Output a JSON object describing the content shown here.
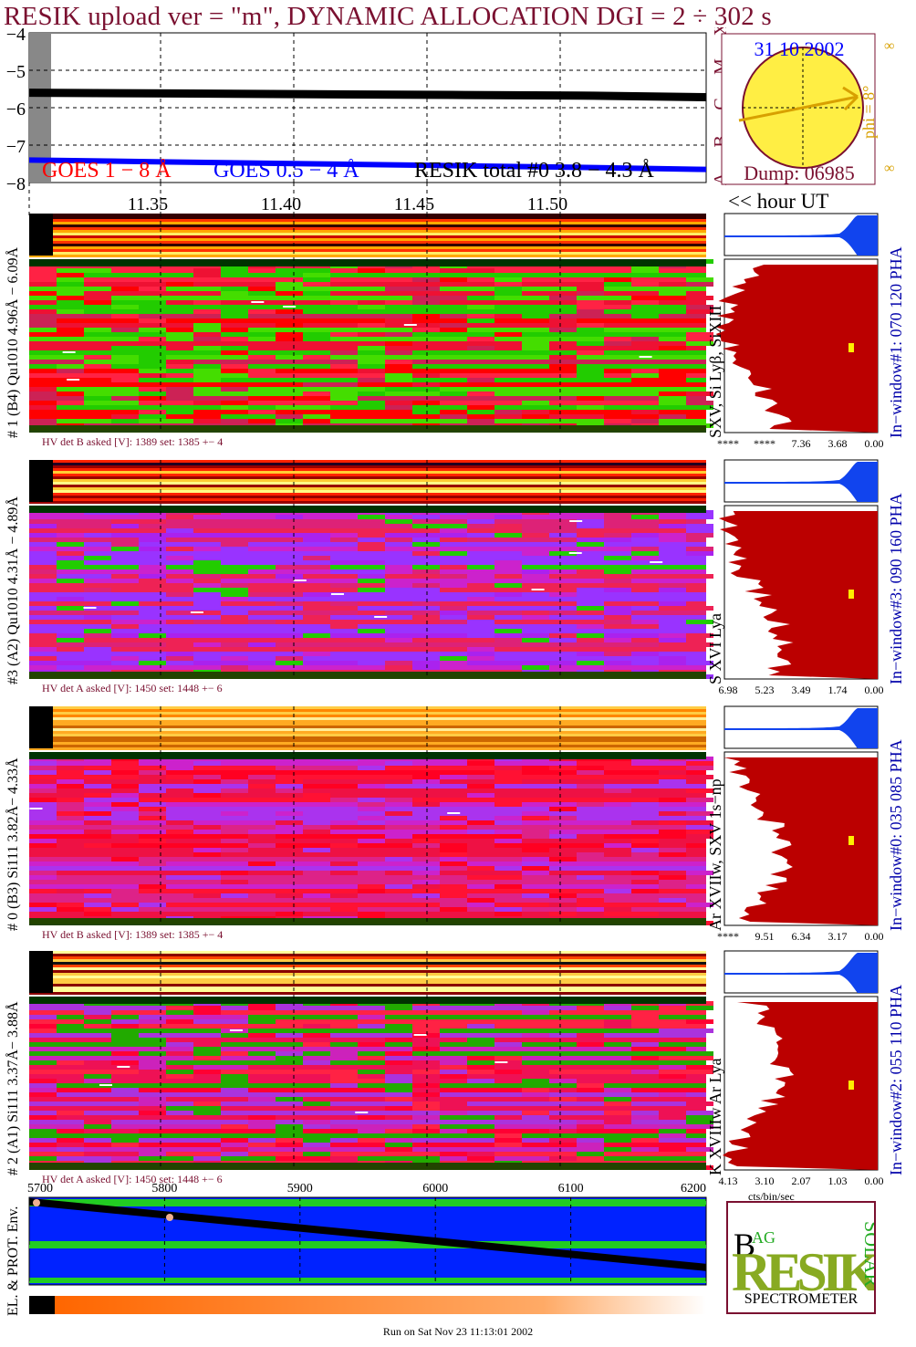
{
  "title": "RESIK upload ver = \"m\", DYNAMIC ALLOCATION  DGI =   2 ÷ 302 s",
  "goes": {
    "y_ticks": [
      "−4",
      "−5",
      "−6",
      "−7",
      "−8"
    ],
    "goes_low_label": "GOES 1 − 8 Å",
    "goes_high_label": "GOES 0.5 − 4 Å",
    "resik_label": "RESIK total #0  3.8 − 4.3 Å",
    "class_letters": [
      "A",
      "B",
      "C",
      "M",
      "X"
    ],
    "colors": {
      "goes_low": "#ff0000",
      "goes_high": "#0000ff",
      "resik": "#000000"
    }
  },
  "time_axis": {
    "ticks": [
      "11.35",
      "11.40",
      "11.45",
      "11.50"
    ],
    "unit_label": "<< hour UT"
  },
  "sun": {
    "date": "31 10 2002",
    "dump": "Dump: 06985",
    "phi": "phi =  8°",
    "infinity_top": "∞",
    "infinity_bottom": "∞"
  },
  "panels": [
    {
      "detector_label": "# 1 (B4) Qu1010 4.96Å − 6.09Å",
      "lines_label": "SXV, Si Lyβ, SiXIII",
      "hv_label": "HV det B asked [V]:  1389 set:  1385 +−   4",
      "window_label": "In−window#1:  070 120 PHA",
      "hist_ticks": [
        "****",
        "****",
        "7.36",
        "3.68",
        "0.00"
      ]
    },
    {
      "detector_label": "#3 (A2) Qu1010  4.31Å − 4.89Å",
      "lines_label": "S XVI Lya",
      "hv_label": "HV det A asked [V]:  1450 set:  1448 +−   6",
      "window_label": "In−window#3:  090 160 PHA",
      "hist_ticks": [
        "6.98",
        "5.23",
        "3.49",
        "1.74",
        "0.00"
      ]
    },
    {
      "detector_label": "# 0 (B3) Si111  3.82Å− 4.33Å",
      "lines_label": "Ar XVIIw,  SXV 1s−np",
      "hv_label": "HV det B asked [V]:  1389 set:  1385 +−   4",
      "window_label": "In−window#0:  035 085 PHA",
      "hist_ticks": [
        "****",
        "9.51",
        "6.34",
        "3.17",
        "0.00"
      ]
    },
    {
      "detector_label": "# 2 (A1) Si111  3.37Å− 3.88Å",
      "lines_label": "K XVIIIw  Ar Lya",
      "hv_label": "HV det A asked [V]:  1450 set:  1448 +−   6",
      "window_label": "In−window#2:  055 110 PHA",
      "hist_ticks": [
        "4.13",
        "3.10",
        "2.07",
        "1.03",
        "0.00"
      ]
    }
  ],
  "hist_unit": "cts/bin/sec",
  "env": {
    "label": "EL. & PROT. Env.",
    "x_ticks": [
      "5700",
      "5800",
      "5900",
      "6000",
      "6100",
      "6200"
    ]
  },
  "logo": {
    "big": "RESIK",
    "letters_b": "B",
    "letters_ag": "AG",
    "letters_solar": "SOLAR",
    "caption": "SPECTROMETER"
  },
  "run_on": "Run on Sat Nov 23 11:13:01 2002",
  "chart_data": [
    {
      "type": "line",
      "title": "",
      "ylabel": "",
      "ylim": [
        -8,
        -4
      ],
      "x": [
        11.3,
        11.35,
        11.4,
        11.45,
        11.5,
        11.54
      ],
      "series": [
        {
          "name": "GOES 1 − 8 Å",
          "values": [
            -5.6,
            -5.62,
            -5.64,
            -5.66,
            -5.68,
            -5.7
          ]
        },
        {
          "name": "GOES 0.5 − 4 Å",
          "values": [
            -7.4,
            -7.45,
            -7.5,
            -7.55,
            -7.6,
            -7.65
          ]
        },
        {
          "name": "RESIK total #0  3.8 − 4.3 Å",
          "values": [
            -5.6,
            -5.62,
            -5.64,
            -5.66,
            -5.68,
            -5.72
          ]
        }
      ]
    },
    {
      "type": "line",
      "title": "",
      "xlabel": "",
      "ylabel": "EL. & PROT. Env.",
      "xlim": [
        5700,
        6200
      ],
      "x": [
        5700,
        5800,
        5900,
        6000,
        6100,
        6200
      ],
      "series": [
        {
          "values": [
            0.95,
            0.8,
            0.65,
            0.5,
            0.35,
            0.2
          ]
        }
      ]
    }
  ]
}
